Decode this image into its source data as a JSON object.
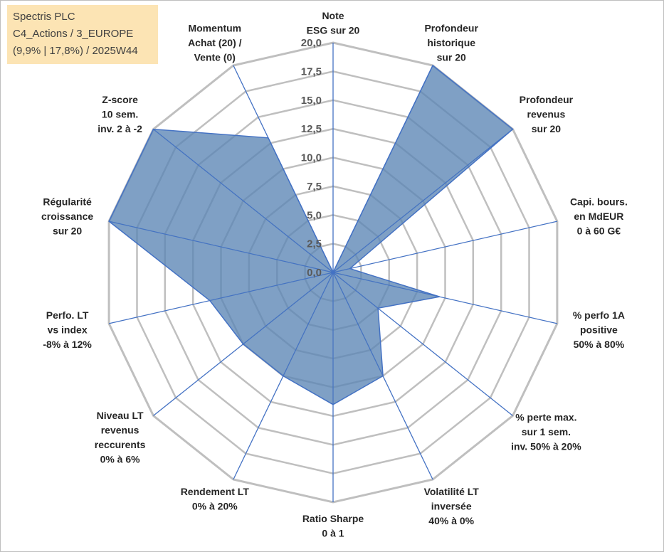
{
  "info_box": {
    "line1": "Spectris PLC",
    "line2": "C4_Actions / 3_EUROPE",
    "line3": "(9,9% | 17,8%) / 2025W44"
  },
  "chart_data": {
    "type": "radar",
    "title": "",
    "rmin": 0,
    "rmax": 20,
    "ticks": [
      "0,0",
      "2,5",
      "5,0",
      "7,5",
      "10,0",
      "12,5",
      "15,0",
      "17,5",
      "20,0"
    ],
    "grid": true,
    "fill_color": "#5b85b5",
    "line_color": "#4472c4",
    "grid_color": "#bfbfbf",
    "axes": [
      {
        "label": [
          "Note",
          "ESG sur 20"
        ],
        "value": 0.0
      },
      {
        "label": [
          "Profondeur",
          "historique",
          "sur 20"
        ],
        "value": 20.0
      },
      {
        "label": [
          "Profondeur",
          "revenus",
          "sur 20"
        ],
        "value": 20.0
      },
      {
        "label": [
          "Capi. bours.",
          "en MdEUR",
          "0 à 60 G€"
        ],
        "value": 1.5
      },
      {
        "label": [
          "% perfo 1A",
          "positive",
          "50% à 80%"
        ],
        "value": 9.5
      },
      {
        "label": [
          "% perte max.",
          "sur 1 sem.",
          "inv. 50% à 20%"
        ],
        "value": 5.0
      },
      {
        "label": [
          "Volatilité LT",
          "inversée",
          "40% à 0%"
        ],
        "value": 10.0
      },
      {
        "label": [
          "Ratio Sharpe",
          "0 à 1"
        ],
        "value": 11.5
      },
      {
        "label": [
          "Rendement LT",
          "0% à 20%"
        ],
        "value": 10.0
      },
      {
        "label": [
          "Niveau LT",
          "revenus",
          "reccurents",
          "0% à 6%"
        ],
        "value": 10.0
      },
      {
        "label": [
          "Perfo. LT",
          "vs index",
          "-8% à 12%"
        ],
        "value": 11.0
      },
      {
        "label": [
          "Régularité",
          "croissance",
          "sur 20"
        ],
        "value": 20.0
      },
      {
        "label": [
          "Z-score",
          "10 sem.",
          "inv. 2 à -2"
        ],
        "value": 20.0
      },
      {
        "label": [
          "Momentum",
          "Achat (20) /",
          "Vente (0)"
        ],
        "value": 13.0
      }
    ]
  }
}
